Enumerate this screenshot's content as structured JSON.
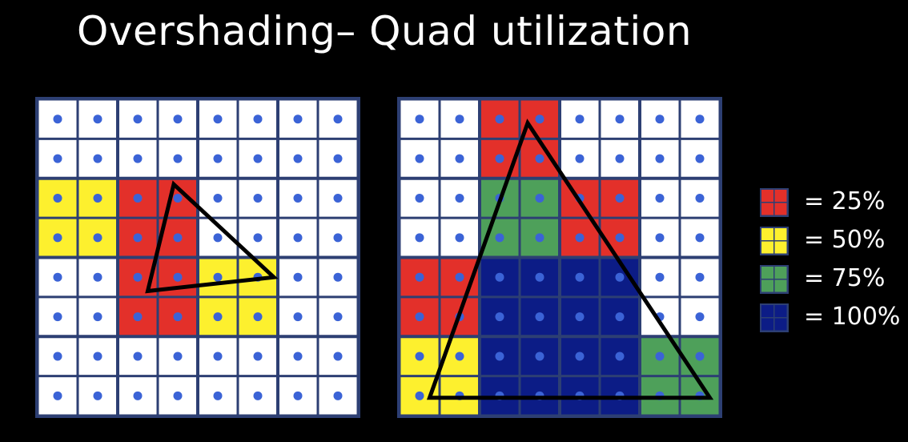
{
  "title": "Overshading– Quad utilization",
  "colors": {
    "background": "#000000",
    "pixel": "#ffffff",
    "grid_line": "#2d3f73",
    "sample_dot": "#3b63d6",
    "quad_25": "#e3302a",
    "quad_50": "#fdf02e",
    "quad_75": "#4ea05a",
    "quad_100": "#0c1c86",
    "triangle_stroke": "#000000"
  },
  "grid_size": {
    "cols": 8,
    "rows": 8
  },
  "quad_colors": {
    "left": [
      [
        null,
        null,
        null,
        null
      ],
      [
        "50",
        "25",
        null,
        null
      ],
      [
        null,
        "25",
        "50",
        null
      ],
      [
        null,
        null,
        null,
        null
      ]
    ],
    "right": [
      [
        null,
        "25",
        null,
        null
      ],
      [
        null,
        "75",
        "25",
        null
      ],
      [
        "25",
        "100",
        "100",
        null
      ],
      [
        "50",
        "100",
        "100",
        "75"
      ]
    ]
  },
  "triangles": {
    "left": [
      [
        3.4,
        2.15
      ],
      [
        5.9,
        4.5
      ],
      [
        2.75,
        4.85
      ]
    ],
    "right": [
      [
        3.2,
        0.6
      ],
      [
        7.75,
        7.55
      ],
      [
        0.75,
        7.55
      ]
    ]
  },
  "legend": [
    {
      "key": "25",
      "label": "= 25%"
    },
    {
      "key": "50",
      "label": "= 50%"
    },
    {
      "key": "75",
      "label": "= 75%"
    },
    {
      "key": "100",
      "label": "= 100%"
    }
  ]
}
